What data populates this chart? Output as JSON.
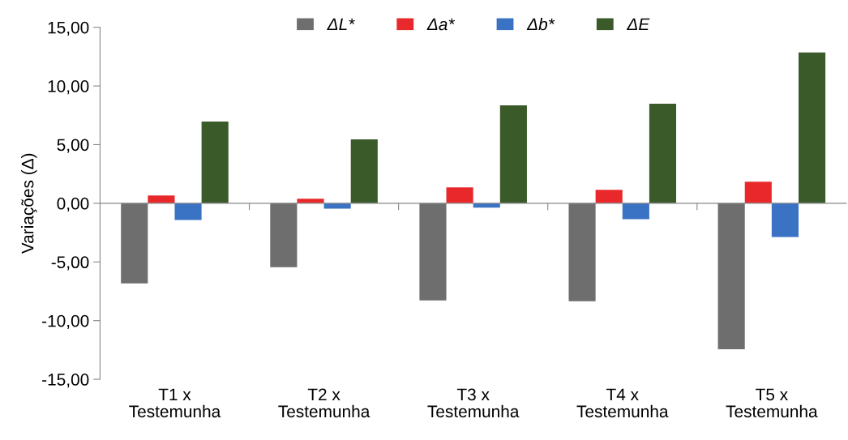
{
  "chart_data": {
    "type": "bar",
    "ylabel": "Variações (Δ)",
    "categories": [
      "T1 x\nTestemunha",
      "T2 x\nTestemunha",
      "T3 x\nTestemunha",
      "T4 x\nTestemunha",
      "T5 x\nTestemunha"
    ],
    "series": [
      {
        "name": "ΔL*",
        "color": "#6e6e6e",
        "values": [
          -6.83,
          -5.44,
          -8.28,
          -8.35,
          -12.44
        ]
      },
      {
        "name": "Δa*",
        "color": "#e8282b",
        "values": [
          0.66,
          0.38,
          1.35,
          1.14,
          1.84
        ]
      },
      {
        "name": "Δb*",
        "color": "#3a72c4",
        "values": [
          -1.42,
          -0.45,
          -0.38,
          -1.35,
          -2.88
        ]
      },
      {
        "name": "ΔE",
        "color": "#3b5a2a",
        "values": [
          6.96,
          5.44,
          8.35,
          8.49,
          12.85
        ]
      }
    ],
    "ylim": [
      -15,
      15
    ],
    "yticks": [
      {
        "value": -15,
        "label": "-15,00"
      },
      {
        "value": -10,
        "label": "-10,00"
      },
      {
        "value": -5,
        "label": "-5,00"
      },
      {
        "value": 0,
        "label": "0,00"
      },
      {
        "value": 5,
        "label": "5,00"
      },
      {
        "value": 10,
        "label": "10,00"
      },
      {
        "value": 15,
        "label": "15,00"
      }
    ],
    "legend": "top"
  }
}
